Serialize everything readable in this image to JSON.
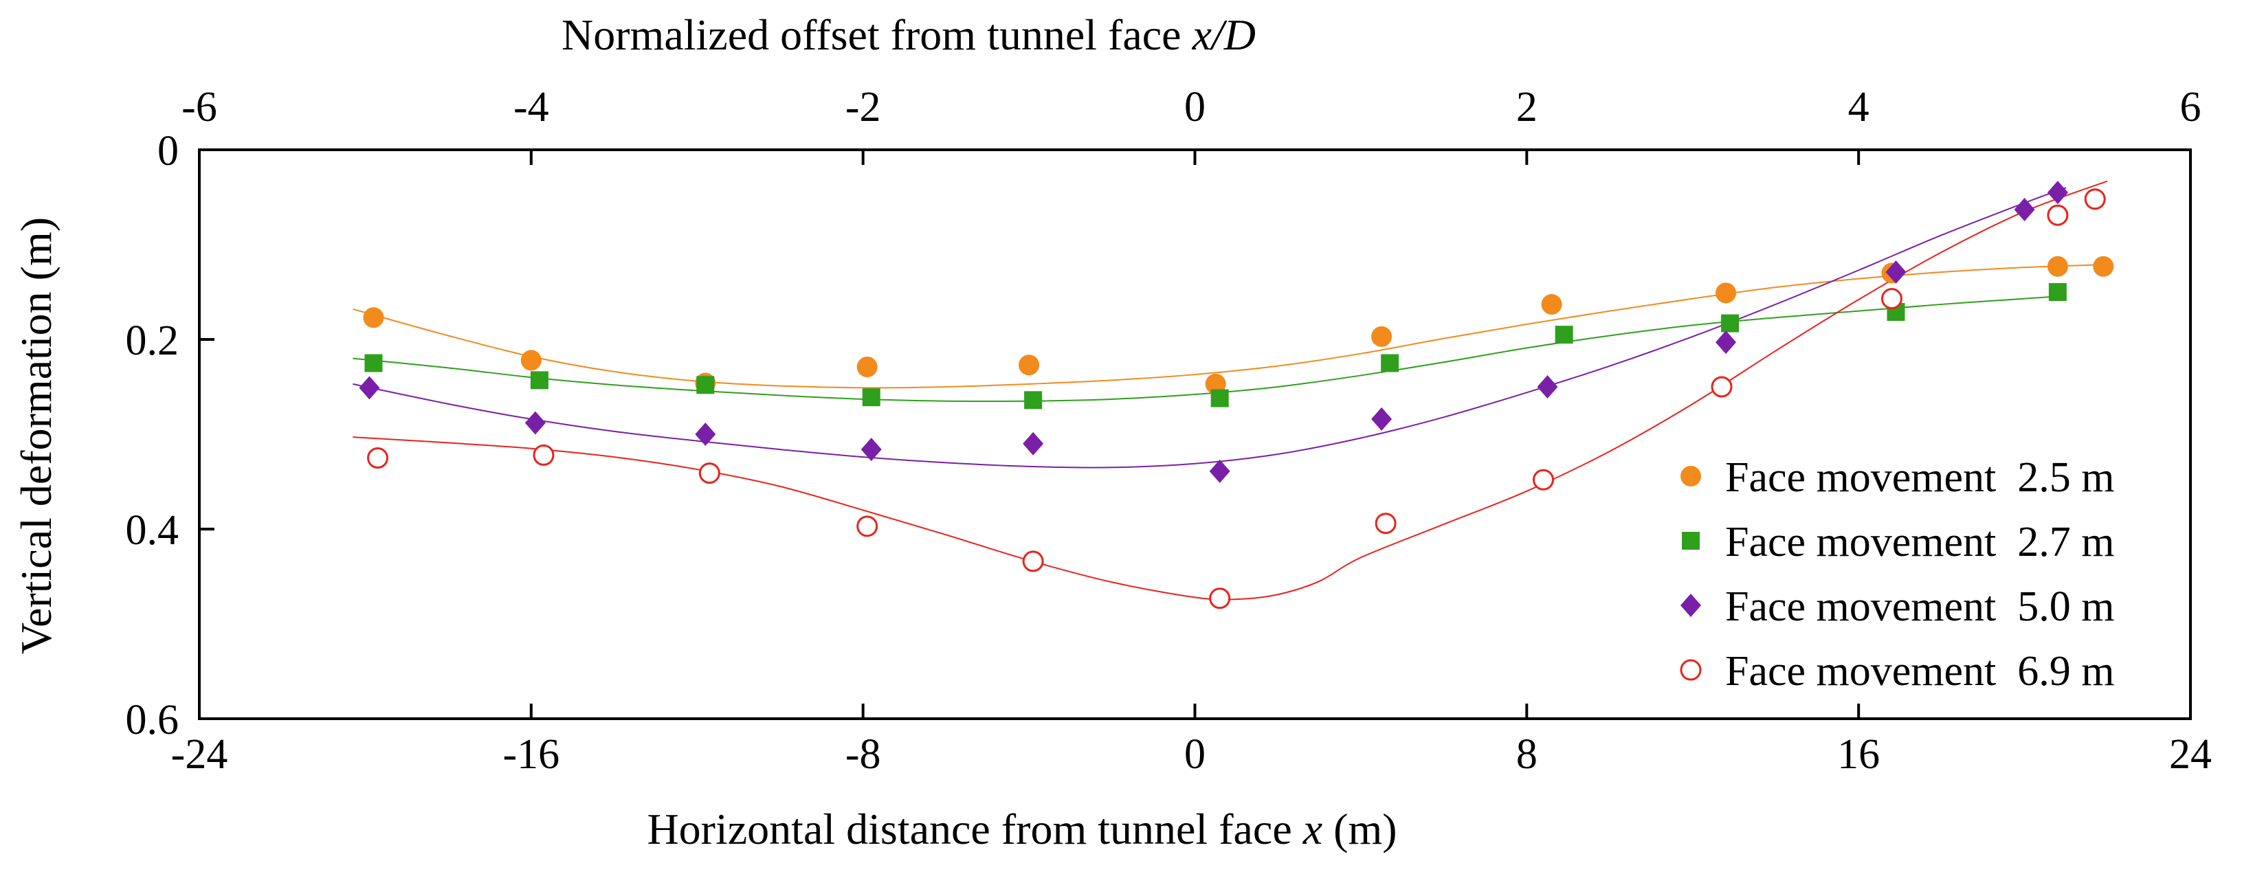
{
  "chart_data": {
    "type": "scatter",
    "title": "",
    "xlabel": "Horizontal distance from tunnel face x (m)",
    "xlabel_parts": {
      "main": "Horizontal distance from tunnel face ",
      "var": "x",
      "unit": " (m)"
    },
    "ylabel": "Vertical deformation (m)",
    "x2label": "Normalized offset from tunnel face x/D",
    "x2label_parts": {
      "main": "Normalized offset from tunnel face ",
      "var": "x/D"
    },
    "xlim": [
      -24,
      24
    ],
    "ylim": [
      0,
      0.6
    ],
    "y_inverted": true,
    "x2lim": [
      -6,
      6
    ],
    "xticks": [
      -24,
      -16,
      -8,
      0,
      8,
      16,
      24
    ],
    "xtick_labels": [
      "-24",
      "-16",
      "-8",
      "0",
      "8",
      "16",
      "24"
    ],
    "x2ticks": [
      -6,
      -4,
      -2,
      0,
      2,
      4,
      6
    ],
    "x2tick_labels": [
      "-6",
      "-4",
      "-2",
      "0",
      "2",
      "4",
      "6"
    ],
    "yticks": [
      0,
      0.2,
      0.4,
      0.6
    ],
    "ytick_labels": [
      "0",
      "0.2",
      "0.4",
      "0.6"
    ],
    "grid": false,
    "legend_position": "right",
    "series": [
      {
        "name": "Face movement  2.5 m",
        "marker": "circle-filled",
        "color": "#f28a1c",
        "points": [
          [
            -19.8,
            0.177
          ],
          [
            -16.0,
            0.222
          ],
          [
            -11.8,
            0.246
          ],
          [
            -7.9,
            0.229
          ],
          [
            -4.0,
            0.227
          ],
          [
            0.5,
            0.247
          ],
          [
            4.5,
            0.197
          ],
          [
            8.6,
            0.163
          ],
          [
            12.8,
            0.151
          ],
          [
            16.8,
            0.13
          ],
          [
            20.8,
            0.123
          ],
          [
            21.9,
            0.123
          ]
        ],
        "fit": [
          [
            -20.3,
            0.168
          ],
          [
            -18,
            0.196
          ],
          [
            -16,
            0.218
          ],
          [
            -14,
            0.234
          ],
          [
            -12,
            0.244
          ],
          [
            -10,
            0.249
          ],
          [
            -8,
            0.251
          ],
          [
            -6,
            0.25
          ],
          [
            -4,
            0.247
          ],
          [
            -2,
            0.243
          ],
          [
            0,
            0.237
          ],
          [
            2,
            0.228
          ],
          [
            4,
            0.215
          ],
          [
            6,
            0.199
          ],
          [
            8,
            0.184
          ],
          [
            10,
            0.17
          ],
          [
            12,
            0.157
          ],
          [
            14,
            0.145
          ],
          [
            16,
            0.136
          ],
          [
            18,
            0.129
          ],
          [
            20,
            0.124
          ],
          [
            22,
            0.121
          ]
        ]
      },
      {
        "name": "Face movement  2.7 m",
        "marker": "square-filled",
        "color": "#2ea01c",
        "points": [
          [
            -19.8,
            0.225
          ],
          [
            -15.8,
            0.243
          ],
          [
            -11.8,
            0.248
          ],
          [
            -7.8,
            0.261
          ],
          [
            -3.9,
            0.264
          ],
          [
            0.6,
            0.262
          ],
          [
            4.7,
            0.225
          ],
          [
            8.9,
            0.195
          ],
          [
            12.9,
            0.183
          ],
          [
            16.9,
            0.171
          ],
          [
            20.8,
            0.15
          ]
        ],
        "fit": [
          [
            -20.3,
            0.22
          ],
          [
            -18,
            0.23
          ],
          [
            -16,
            0.24
          ],
          [
            -14,
            0.248
          ],
          [
            -12,
            0.254
          ],
          [
            -10,
            0.259
          ],
          [
            -8,
            0.263
          ],
          [
            -6,
            0.265
          ],
          [
            -4,
            0.265
          ],
          [
            -2,
            0.263
          ],
          [
            0,
            0.258
          ],
          [
            2,
            0.25
          ],
          [
            4,
            0.238
          ],
          [
            6,
            0.224
          ],
          [
            8,
            0.209
          ],
          [
            10,
            0.196
          ],
          [
            12,
            0.185
          ],
          [
            14,
            0.177
          ],
          [
            16,
            0.17
          ],
          [
            18,
            0.163
          ],
          [
            20,
            0.157
          ],
          [
            21,
            0.154
          ]
        ]
      },
      {
        "name": "Face movement  5.0 m",
        "marker": "diamond-filled",
        "color": "#7a1fa8",
        "points": [
          [
            -19.9,
            0.251
          ],
          [
            -15.9,
            0.288
          ],
          [
            -11.8,
            0.3
          ],
          [
            -7.8,
            0.316
          ],
          [
            -3.9,
            0.31
          ],
          [
            0.6,
            0.339
          ],
          [
            4.5,
            0.284
          ],
          [
            8.5,
            0.25
          ],
          [
            12.8,
            0.203
          ],
          [
            16.9,
            0.129
          ],
          [
            20.0,
            0.063
          ],
          [
            20.8,
            0.045
          ]
        ],
        "fit": [
          [
            -20.3,
            0.247
          ],
          [
            -18,
            0.268
          ],
          [
            -16,
            0.284
          ],
          [
            -14,
            0.297
          ],
          [
            -12,
            0.307
          ],
          [
            -10,
            0.316
          ],
          [
            -8,
            0.324
          ],
          [
            -6,
            0.33
          ],
          [
            -4,
            0.334
          ],
          [
            -2,
            0.335
          ],
          [
            0,
            0.331
          ],
          [
            2,
            0.321
          ],
          [
            4,
            0.304
          ],
          [
            6,
            0.282
          ],
          [
            8,
            0.256
          ],
          [
            10,
            0.228
          ],
          [
            12,
            0.197
          ],
          [
            14,
            0.163
          ],
          [
            16,
            0.127
          ],
          [
            18,
            0.09
          ],
          [
            20,
            0.056
          ],
          [
            21,
            0.04
          ]
        ]
      },
      {
        "name": "Face movement  6.9 m",
        "marker": "circle-open",
        "color": "#e8231c",
        "points": [
          [
            -19.7,
            0.325
          ],
          [
            -15.7,
            0.322
          ],
          [
            -11.7,
            0.341
          ],
          [
            -7.9,
            0.397
          ],
          [
            -3.9,
            0.434
          ],
          [
            0.6,
            0.473
          ],
          [
            4.6,
            0.394
          ],
          [
            8.4,
            0.348
          ],
          [
            12.7,
            0.25
          ],
          [
            16.8,
            0.157
          ],
          [
            20.8,
            0.069
          ],
          [
            21.7,
            0.052
          ]
        ],
        "fit": [
          [
            -20.3,
            0.303
          ],
          [
            -18,
            0.309
          ],
          [
            -16,
            0.315
          ],
          [
            -14,
            0.324
          ],
          [
            -12,
            0.337
          ],
          [
            -10,
            0.355
          ],
          [
            -8,
            0.38
          ],
          [
            -6,
            0.406
          ],
          [
            -4,
            0.433
          ],
          [
            -2,
            0.456
          ],
          [
            0,
            0.472
          ],
          [
            1,
            0.474
          ],
          [
            2,
            0.469
          ],
          [
            3,
            0.455
          ],
          [
            4,
            0.43
          ],
          [
            6,
            0.395
          ],
          [
            8,
            0.36
          ],
          [
            10,
            0.318
          ],
          [
            12,
            0.268
          ],
          [
            14,
            0.212
          ],
          [
            16,
            0.158
          ],
          [
            18,
            0.108
          ],
          [
            20,
            0.065
          ],
          [
            22,
            0.033
          ]
        ]
      }
    ]
  }
}
